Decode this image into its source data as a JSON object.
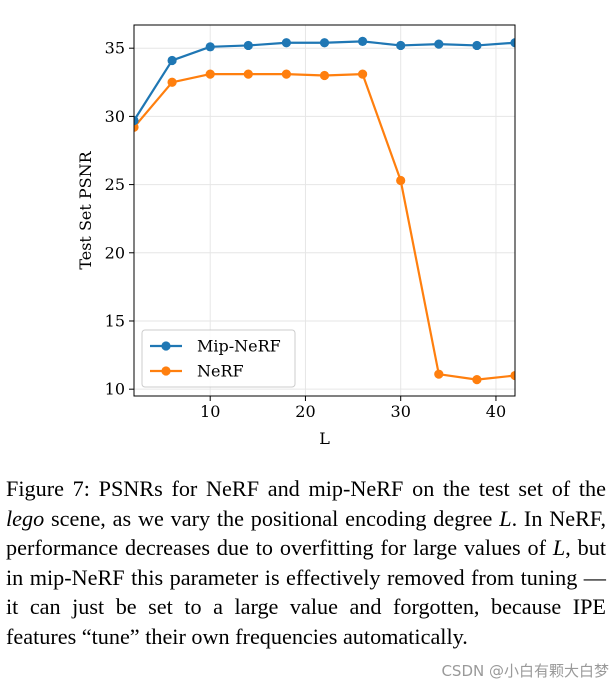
{
  "chart_data": {
    "type": "line",
    "title": "",
    "xlabel": "L",
    "ylabel": "Test Set PSNR",
    "xlim": [
      2,
      42
    ],
    "ylim": [
      9.5,
      36.7
    ],
    "x_ticks": [
      10,
      20,
      30,
      40
    ],
    "y_ticks": [
      10,
      15,
      20,
      25,
      30,
      35
    ],
    "grid": true,
    "legend_position": "lower-left",
    "series": [
      {
        "name": "Mip-NeRF",
        "color": "#1f77b4",
        "x": [
          2,
          6,
          10,
          14,
          18,
          22,
          26,
          30,
          34,
          38,
          42
        ],
        "y": [
          29.7,
          34.1,
          35.1,
          35.2,
          35.4,
          35.4,
          35.5,
          35.2,
          35.3,
          35.2,
          35.4
        ]
      },
      {
        "name": "NeRF",
        "color": "#ff7f0e",
        "x": [
          2,
          6,
          10,
          14,
          18,
          22,
          26,
          30,
          34,
          38,
          42
        ],
        "y": [
          29.2,
          32.5,
          33.1,
          33.1,
          33.1,
          33.0,
          33.1,
          25.3,
          11.1,
          10.7,
          11.0
        ]
      }
    ]
  },
  "caption": {
    "prefix": "Figure 7:  PSNRs for NeRF and mip-NeRF on the test set of the ",
    "scene": "lego",
    "middle1": " scene, as we vary the positional encoding degree ",
    "var1": "L",
    "middle2": ".  In NeRF, performance decreases due to overfitting for large values of ",
    "var2": "L",
    "suffix": ", but in mip-NeRF this parameter is effectively removed from tuning — it can just be set to a large value and forgotten, because IPE features “tune” their own frequencies automatically."
  },
  "watermark": "CSDN @小白有颗大白梦"
}
